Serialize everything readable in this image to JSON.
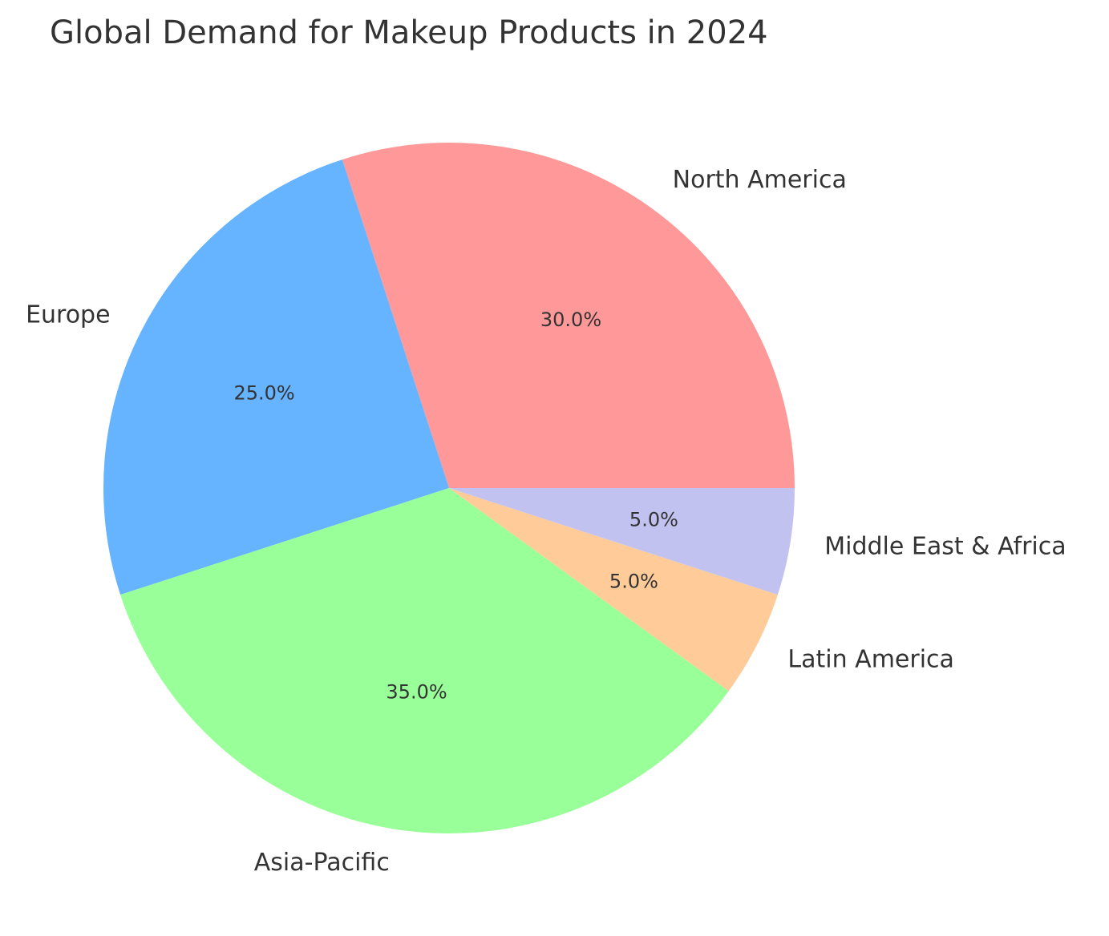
{
  "chart_data": {
    "type": "pie",
    "title": "Global Demand for Makeup Products in 2024",
    "categories": [
      "North America",
      "Europe",
      "Asia-Pacific",
      "Latin America",
      "Middle East & Africa"
    ],
    "values": [
      30.0,
      25.0,
      35.0,
      5.0,
      5.0
    ],
    "percent_labels": [
      "30.0%",
      "25.0%",
      "35.0%",
      "5.0%",
      "5.0%"
    ],
    "colors": [
      "#ff9999",
      "#66b3ff",
      "#99ff99",
      "#ffcc99",
      "#c2c2f0"
    ],
    "start_angle_deg": 0,
    "direction": "counterclockwise",
    "legend": "none"
  }
}
